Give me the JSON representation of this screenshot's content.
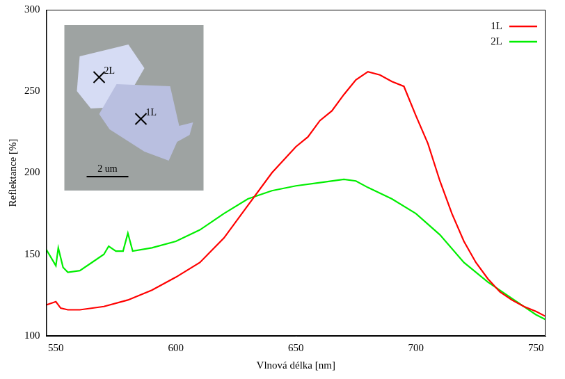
{
  "chart_data": {
    "type": "line",
    "x_label": "Vlnová délka [nm]",
    "y_label": "Reflektance [%]",
    "xlim": [
      546,
      754
    ],
    "xticks": [
      550,
      600,
      650,
      700,
      750
    ],
    "ylim": [
      100,
      300
    ],
    "yticks": [
      100,
      150,
      200,
      250,
      300
    ],
    "grid": false,
    "legend": "upper right",
    "series": [
      {
        "name": "1L",
        "color": "#ff0000",
        "x": [
          546,
          550,
          552,
          555,
          560,
          570,
          580,
          590,
          600,
          610,
          620,
          630,
          640,
          650,
          655,
          660,
          665,
          670,
          675,
          680,
          685,
          690,
          695,
          700,
          705,
          710,
          715,
          720,
          725,
          730,
          735,
          740,
          745,
          750,
          754
        ],
        "values": [
          119,
          121,
          117,
          116,
          116,
          118,
          122,
          128,
          136,
          145,
          160,
          180,
          200,
          216,
          222,
          232,
          238,
          248,
          257,
          262,
          260,
          256,
          253,
          235,
          218,
          195,
          175,
          158,
          145,
          135,
          127,
          122,
          118,
          115,
          112
        ]
      },
      {
        "name": "2L",
        "color": "#00ee00",
        "x": [
          546,
          550,
          551,
          553,
          555,
          560,
          565,
          570,
          572,
          575,
          578,
          580,
          582,
          590,
          600,
          610,
          615,
          620,
          630,
          640,
          650,
          660,
          670,
          675,
          680,
          690,
          700,
          710,
          720,
          730,
          740,
          750,
          754
        ],
        "values": [
          153,
          143,
          154,
          142,
          139,
          140,
          145,
          150,
          155,
          152,
          152,
          163,
          152,
          154,
          158,
          165,
          170,
          175,
          184,
          189,
          192,
          194,
          196,
          195,
          191,
          184,
          175,
          162,
          145,
          133,
          123,
          113,
          110
        ]
      }
    ],
    "inset": {
      "labels": [
        "2L",
        "1L"
      ],
      "scale_bar": "2 um"
    }
  }
}
